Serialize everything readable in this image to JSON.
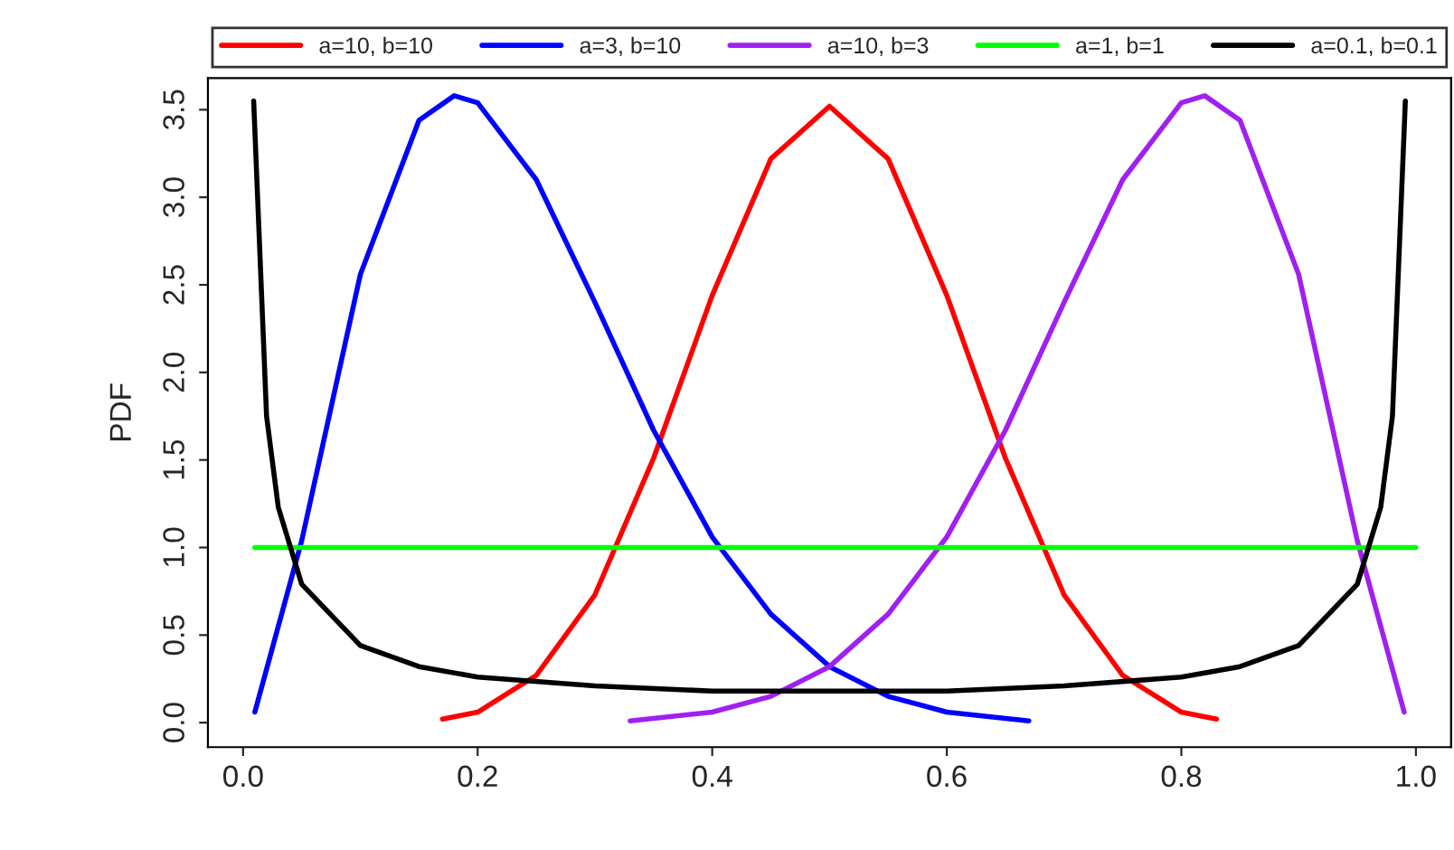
{
  "chart_data": {
    "type": "line",
    "ylabel": "PDF",
    "xlim": [
      -0.03,
      1.03
    ],
    "ylim": [
      -0.14,
      3.68
    ],
    "xticks": [
      {
        "value": 0,
        "label": "0.0"
      },
      0.2,
      0.4,
      0.6,
      0.8,
      {
        "value": 1,
        "label": "1.0"
      }
    ],
    "yticks": [
      {
        "value": 0,
        "label": "0.0"
      },
      0.5,
      {
        "value": 1,
        "label": "1.0"
      },
      1.5,
      {
        "value": 2,
        "label": "2.0"
      },
      2.5,
      {
        "value": 3,
        "label": "3.0"
      },
      3.5
    ],
    "grid": false,
    "legend": "top",
    "marker": "none",
    "line_style": "solid",
    "series": [
      {
        "name": "a=10, b=10",
        "color": "#ff0000",
        "x": [
          0.17,
          0.2,
          0.25,
          0.3,
          0.35,
          0.4,
          0.45,
          0.5,
          0.55,
          0.6,
          0.65,
          0.7,
          0.75,
          0.8,
          0.83
        ],
        "values": [
          0.02,
          0.06,
          0.27,
          0.73,
          1.51,
          2.44,
          3.22,
          3.52,
          3.22,
          2.44,
          1.51,
          0.73,
          0.27,
          0.06,
          0.02
        ]
      },
      {
        "name": "a=3, b=10",
        "color": "#0000ff",
        "x": [
          0.01,
          0.05,
          0.1,
          0.15,
          0.18,
          0.2,
          0.25,
          0.3,
          0.35,
          0.4,
          0.45,
          0.5,
          0.55,
          0.6,
          0.67
        ],
        "values": [
          0.06,
          1.04,
          2.56,
          3.44,
          3.58,
          3.54,
          3.1,
          2.4,
          1.67,
          1.06,
          0.62,
          0.32,
          0.15,
          0.06,
          0.01
        ]
      },
      {
        "name": "a=10, b=3",
        "color": "#a020f0",
        "x": [
          0.33,
          0.4,
          0.45,
          0.5,
          0.55,
          0.6,
          0.65,
          0.7,
          0.75,
          0.8,
          0.82,
          0.85,
          0.9,
          0.95,
          0.99
        ],
        "values": [
          0.01,
          0.06,
          0.15,
          0.32,
          0.62,
          1.06,
          1.67,
          2.4,
          3.1,
          3.54,
          3.58,
          3.44,
          2.56,
          1.04,
          0.06
        ]
      },
      {
        "name": "a=1, b=1",
        "color": "#00ff00",
        "x": [
          0.01,
          1.0
        ],
        "values": [
          1.0,
          1.0
        ]
      },
      {
        "name": "a=0.1, b=0.1",
        "color": "#000000",
        "x": [
          0.009,
          0.02,
          0.03,
          0.05,
          0.1,
          0.15,
          0.2,
          0.3,
          0.4,
          0.5,
          0.6,
          0.7,
          0.8,
          0.85,
          0.9,
          0.95,
          0.97,
          0.98,
          0.991
        ],
        "values": [
          3.55,
          1.75,
          1.23,
          0.79,
          0.44,
          0.32,
          0.26,
          0.21,
          0.18,
          0.18,
          0.18,
          0.21,
          0.26,
          0.32,
          0.44,
          0.79,
          1.23,
          1.75,
          3.55
        ]
      }
    ]
  }
}
